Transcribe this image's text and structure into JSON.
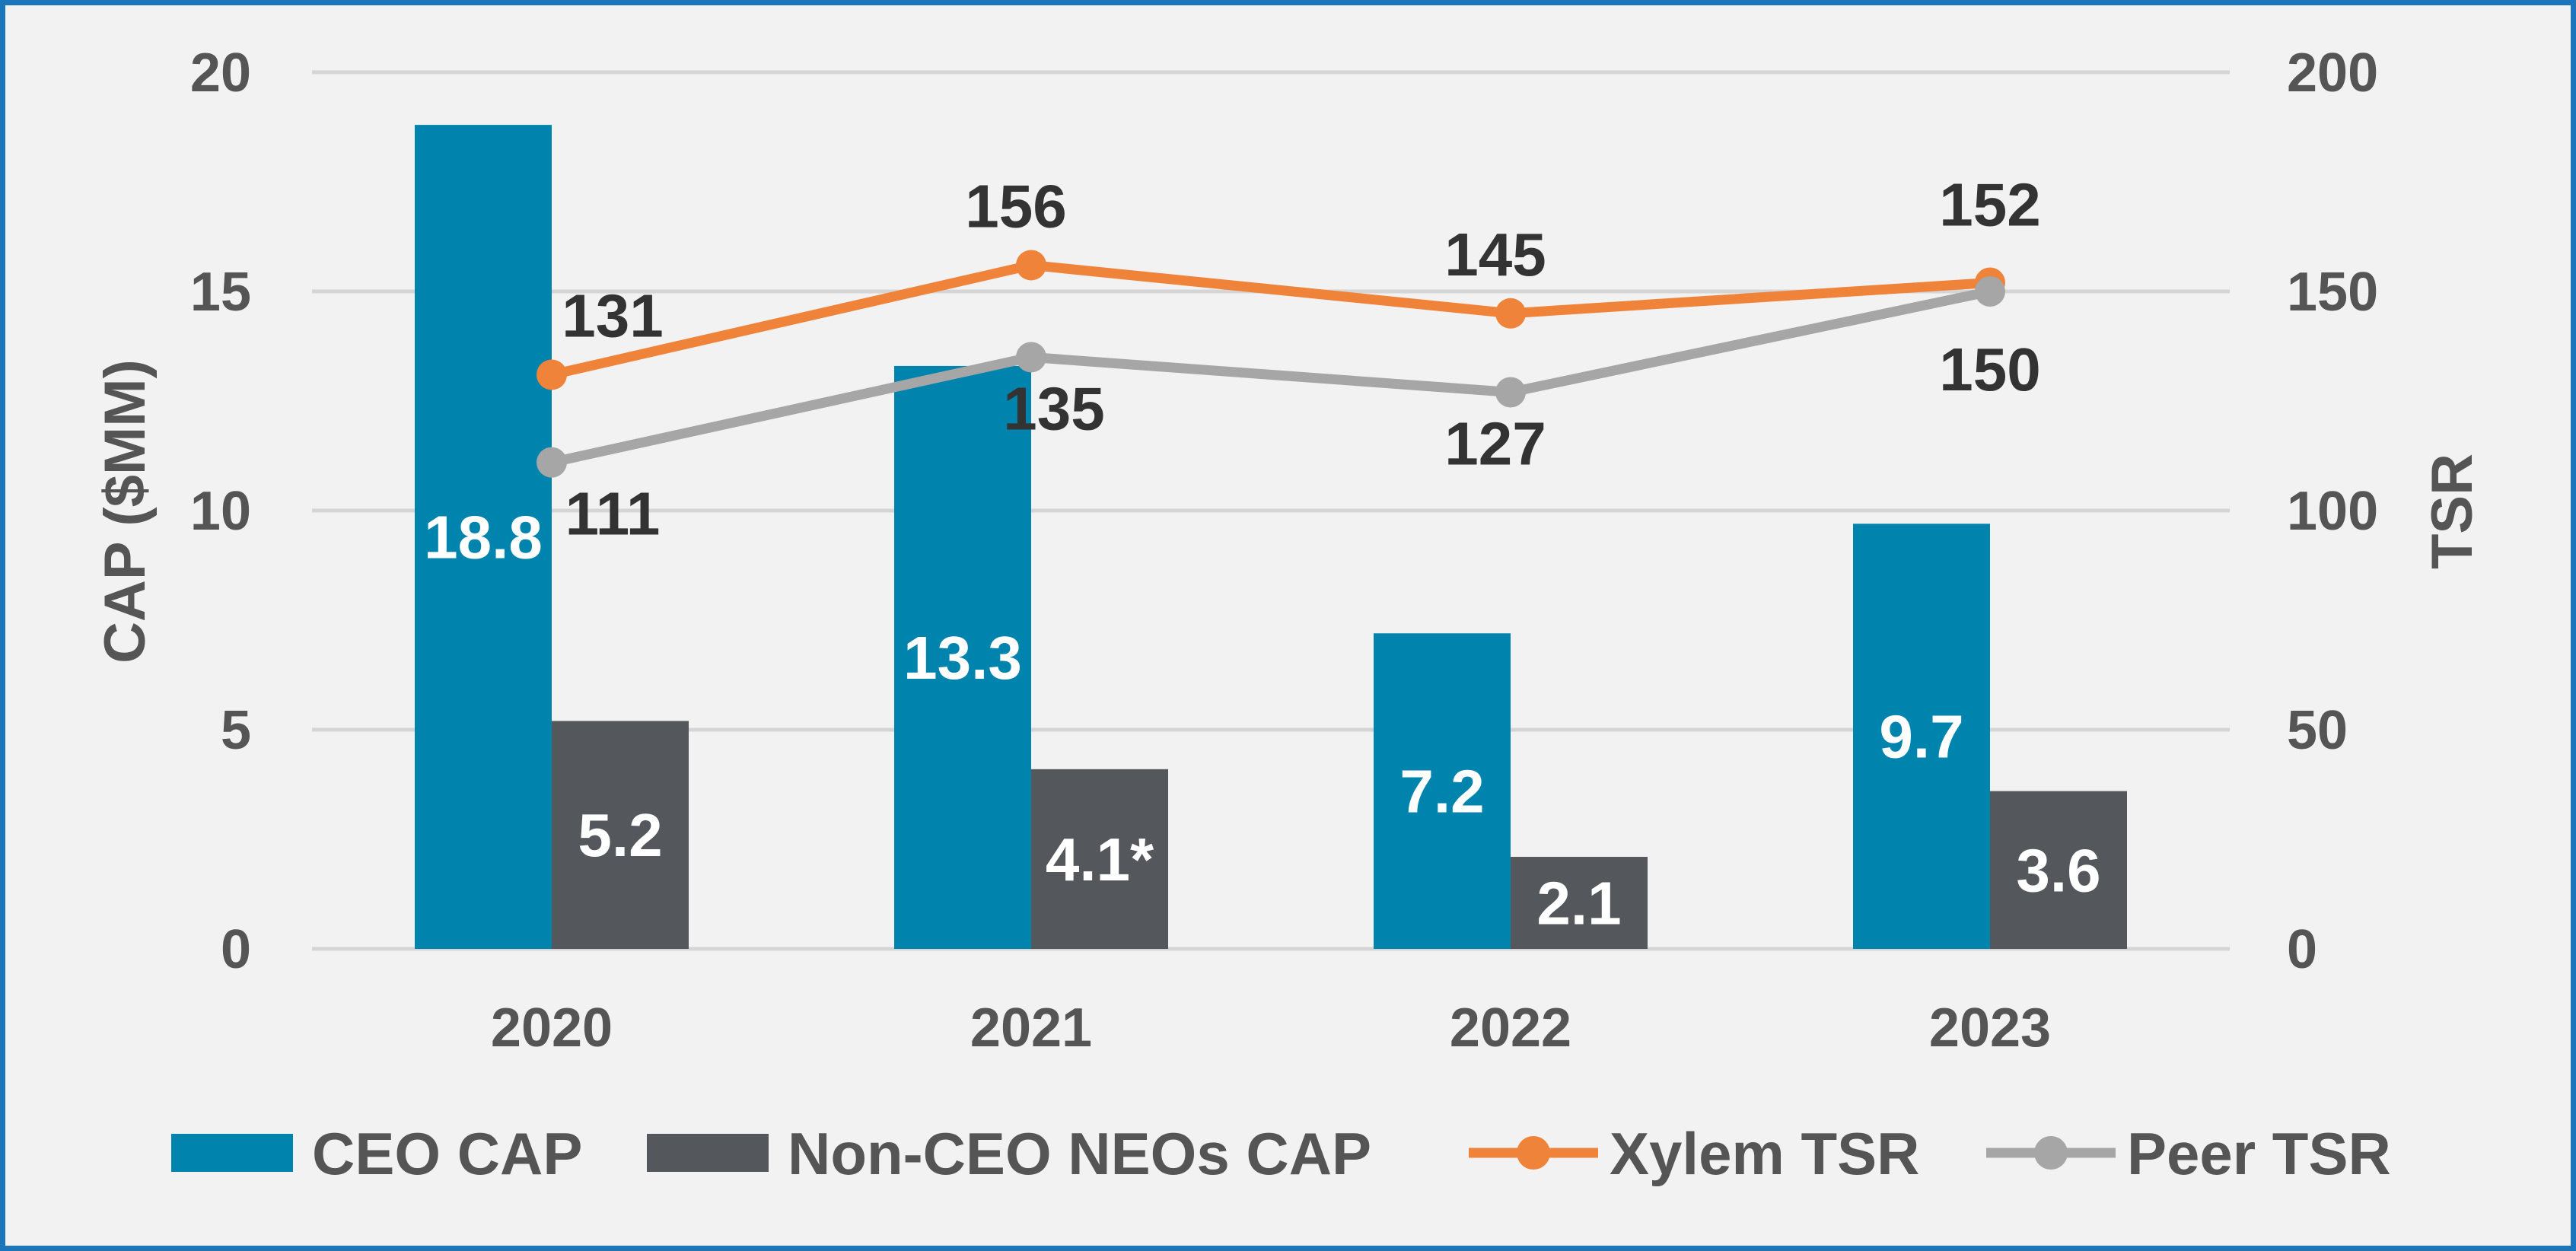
{
  "chart_data": {
    "type": "bar",
    "categories": [
      "2020",
      "2021",
      "2022",
      "2023"
    ],
    "series": [
      {
        "name": "CEO CAP",
        "kind": "bar",
        "axis": "left",
        "color": "#0084AE",
        "values": [
          18.8,
          13.3,
          7.2,
          9.7
        ],
        "labels": [
          "18.8",
          "13.3",
          "7.2",
          "9.7"
        ]
      },
      {
        "name": "Non-CEO NEOs CAP",
        "kind": "bar",
        "axis": "left",
        "color": "#54575B",
        "values": [
          5.2,
          4.1,
          2.1,
          3.6
        ],
        "labels": [
          "5.2",
          "4.1*",
          "2.1",
          "3.6"
        ]
      },
      {
        "name": "Xylem TSR",
        "kind": "line",
        "axis": "right",
        "color": "#F0833A",
        "values": [
          131,
          156,
          145,
          152
        ],
        "labels": [
          "131",
          "156",
          "145",
          "152"
        ]
      },
      {
        "name": "Peer TSR",
        "kind": "line",
        "axis": "right",
        "color": "#A6A6A6",
        "values": [
          111,
          135,
          127,
          150
        ],
        "labels": [
          "111",
          "135",
          "127",
          "150"
        ]
      }
    ],
    "ylabel": "CAP ($MM)",
    "ylabel_right": "TSR",
    "ylim": [
      0,
      20
    ],
    "ylim_right": [
      0,
      200
    ],
    "yticks": [
      "0",
      "5",
      "10",
      "15",
      "20"
    ],
    "yticks_right": [
      "0",
      "50",
      "100",
      "150",
      "200"
    ],
    "grid": true,
    "legend": "bottom"
  },
  "colors": {
    "frame_border": "#1B75BB",
    "background": "#F2F2F2"
  }
}
